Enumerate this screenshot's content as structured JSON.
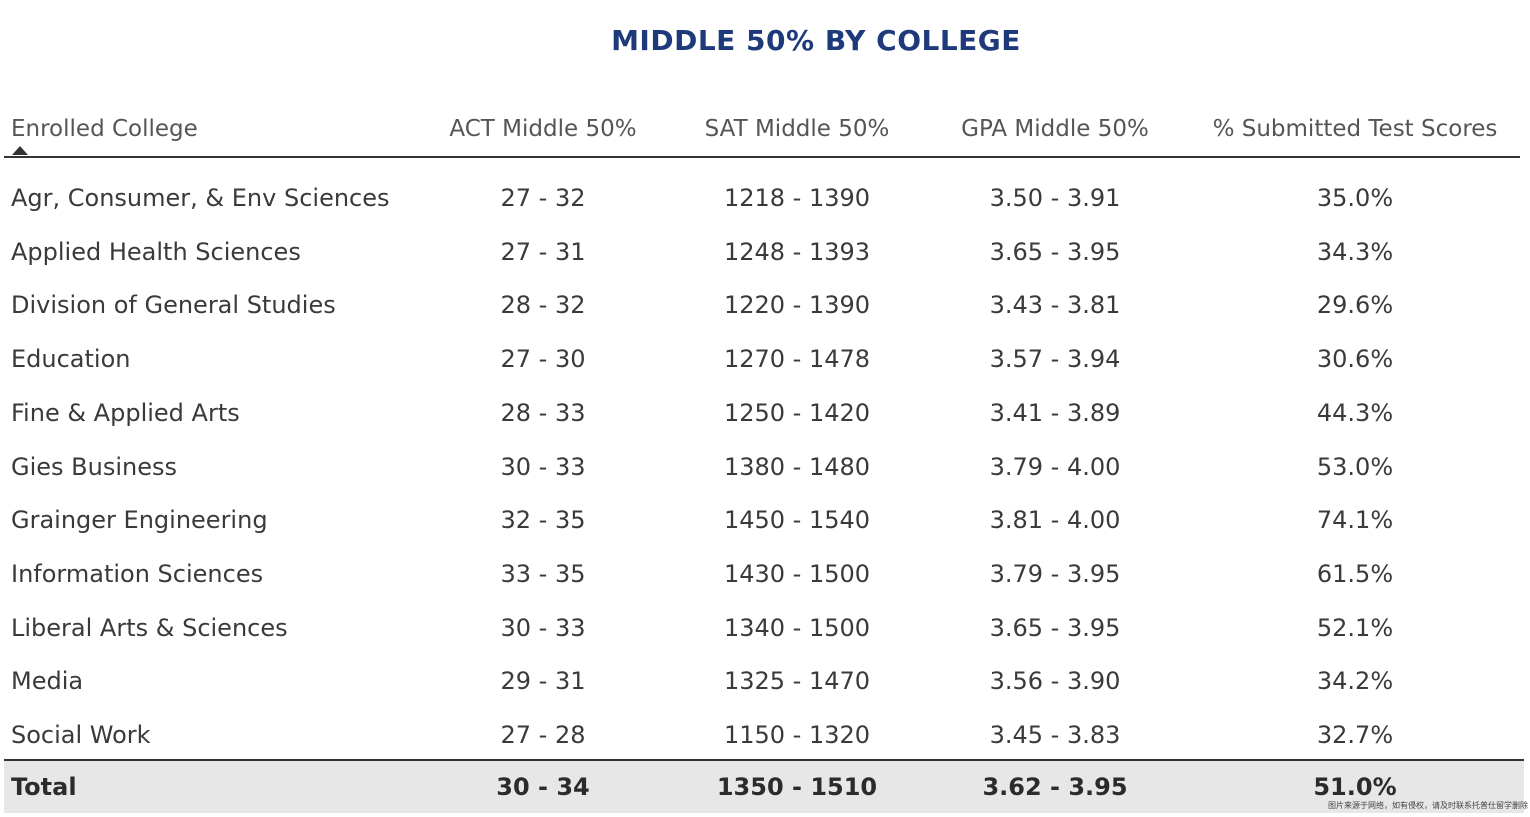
{
  "chart_data": {
    "type": "table",
    "title": "MIDDLE 50% BY COLLEGE",
    "columns": [
      "Enrolled College",
      "ACT Middle 50%",
      "SAT Middle 50%",
      "GPA Middle 50%",
      "% Submitted Test Scores"
    ],
    "rows": [
      [
        "Agr, Consumer, & Env Sciences",
        "27 - 32",
        "1218 - 1390",
        "3.50 - 3.91",
        "35.0%"
      ],
      [
        "Applied Health Sciences",
        "27 - 31",
        "1248 - 1393",
        "3.65 - 3.95",
        "34.3%"
      ],
      [
        "Division of General Studies",
        "28 - 32",
        "1220 - 1390",
        "3.43 - 3.81",
        "29.6%"
      ],
      [
        "Education",
        "27 - 30",
        "1270 - 1478",
        "3.57 - 3.94",
        "30.6%"
      ],
      [
        "Fine & Applied Arts",
        "28 - 33",
        "1250 - 1420",
        "3.41 - 3.89",
        "44.3%"
      ],
      [
        "Gies Business",
        "30 - 33",
        "1380 - 1480",
        "3.79 - 4.00",
        "53.0%"
      ],
      [
        "Grainger Engineering",
        "32 - 35",
        "1450 - 1540",
        "3.81 - 4.00",
        "74.1%"
      ],
      [
        "Information Sciences",
        "33 - 35",
        "1430 - 1500",
        "3.79 - 3.95",
        "61.5%"
      ],
      [
        "Liberal Arts & Sciences",
        "30 - 33",
        "1340 - 1500",
        "3.65 - 3.95",
        "52.1%"
      ],
      [
        "Media",
        "29 - 31",
        "1325 - 1470",
        "3.56 - 3.90",
        "34.2%"
      ],
      [
        "Social Work",
        "27 - 28",
        "1150 - 1320",
        "3.45 - 3.83",
        "32.7%"
      ]
    ],
    "total": [
      "Total",
      "30 - 34",
      "1350 - 1510",
      "3.62 - 3.95",
      "51.0%"
    ],
    "sort": {
      "column": "Enrolled College",
      "direction": "ascending"
    }
  },
  "colors": {
    "title": "#1f3a7a",
    "total_background": "#e7e7e7",
    "text": "#3a3a3a"
  },
  "watermark": "图片来源于网络，如有侵权，请及时联系托普仕留学删除"
}
